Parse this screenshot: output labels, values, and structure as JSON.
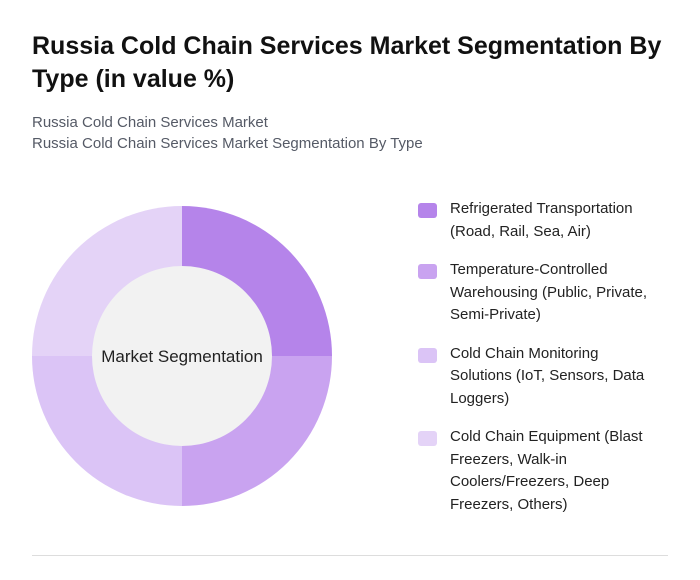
{
  "chart_data": {
    "type": "donut",
    "title": "Russia Cold Chain Services Market Segmentation By Type (in value %)",
    "subtitles": [
      "Russia Cold Chain Services Market",
      "Russia Cold Chain Services Market Segmentation By Type"
    ],
    "center_label": "Market Segmentation",
    "categories": [
      "Refrigerated Transportation (Road, Rail, Sea, Air)",
      "Temperature-Controlled Warehousing (Public, Private, Semi-Private)",
      "Cold Chain Monitoring Solutions (IoT, Sensors, Data Loggers)",
      "Cold Chain Equipment (Blast Freezers, Walk-in Coolers/Freezers, Deep Freezers, Others)"
    ],
    "values": [
      25,
      25,
      25,
      25
    ],
    "colors": [
      "#b584ea",
      "#c9a3f0",
      "#dbc4f6",
      "#e4d3f7"
    ]
  }
}
